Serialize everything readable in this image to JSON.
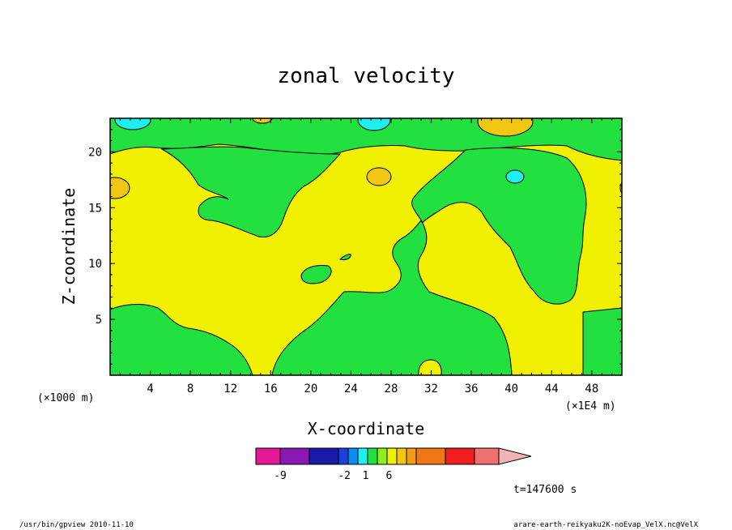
{
  "chart_data": {
    "type": "heatmap",
    "title": "zonal velocity",
    "xlabel": "X-coordinate",
    "ylabel": "Z-coordinate",
    "x_ticks": [
      "4",
      "8",
      "12",
      "16",
      "20",
      "24",
      "28",
      "32",
      "36",
      "40",
      "44",
      "48"
    ],
    "y_ticks": [
      "5",
      "10",
      "15",
      "20"
    ],
    "xlim": [
      0,
      51
    ],
    "ylim": [
      0,
      23
    ],
    "x_scale_note": "(×1000 m)",
    "x_unit": "(×1E4 m)",
    "time_label": "t=147600 s",
    "colorbar": {
      "labels": [
        {
          "text": "-9",
          "slot": 1
        },
        {
          "text": "-2",
          "slot": 3.6
        },
        {
          "text": "1",
          "slot": 5.8
        },
        {
          "text": "6",
          "slot": 8.2
        }
      ],
      "colors": [
        "#e6189a",
        "#8a17b2",
        "#1a1aa8",
        "#1842d8",
        "#0a8cf0",
        "#1ef0f0",
        "#22e040",
        "#8cf020",
        "#f0f000",
        "#f0c814",
        "#f09c14",
        "#f07814",
        "#f01e1e",
        "#f07070",
        "#f0b4b4"
      ]
    },
    "fields": {
      "background_level": "yellow",
      "regions": [
        {
          "level": "green",
          "desc": "lower-left"
        },
        {
          "level": "green",
          "desc": "top band"
        },
        {
          "level": "green",
          "desc": "left lobe"
        },
        {
          "level": "green",
          "desc": "center-bottom"
        },
        {
          "level": "green",
          "desc": "right column"
        },
        {
          "level": "cyan",
          "desc": "negative cells"
        },
        {
          "level": "orange",
          "desc": "positive cells"
        }
      ]
    }
  },
  "footer": {
    "left": "/usr/bin/gpview  2010-11-10",
    "right": "arare-earth-reikyaku2K-noEvap_VelX.nc@VelX"
  }
}
